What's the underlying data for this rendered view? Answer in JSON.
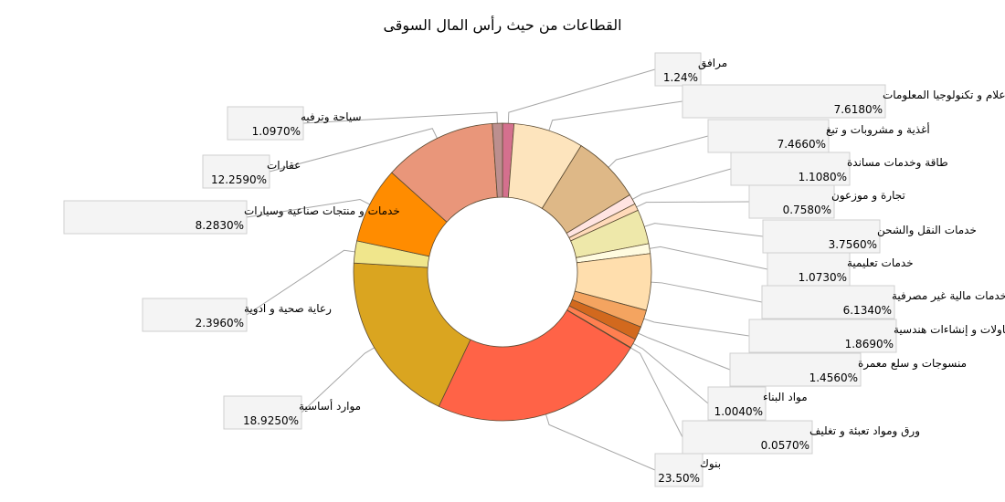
{
  "chart_data": {
    "type": "pie",
    "donut": true,
    "title": "القطاعات من حيث رأس المال السوقى",
    "slices": [
      {
        "name": "مرافق",
        "value_label": "1.24%",
        "value": 1.24,
        "color": "#d4708e"
      },
      {
        "name": "اتصالات و  اعلام و تكنولوجيا المعلومات",
        "value_label": "7.6180%",
        "value": 7.618,
        "color": "#fde4bd"
      },
      {
        "name": "أغذية و مشروبات و تبغ",
        "value_label": "7.4660%",
        "value": 7.466,
        "color": "#deb887"
      },
      {
        "name": "طاقة وخدمات مساندة",
        "value_label": "1.1080%",
        "value": 1.108,
        "color": "#ffe4e1"
      },
      {
        "name": "تجارة و موزعون",
        "value_label": "0.7580%",
        "value": 0.758,
        "color": "#ffdab9"
      },
      {
        "name": "خدمات النقل والشحن",
        "value_label": "3.7560%",
        "value": 3.756,
        "color": "#eee8aa"
      },
      {
        "name": "خدمات تعليمية",
        "value_label": "1.0730%",
        "value": 1.073,
        "color": "#fffbe0"
      },
      {
        "name": "خدمات مالية غير مصرفية",
        "value_label": "6.1340%",
        "value": 6.134,
        "color": "#ffdead"
      },
      {
        "name": "مقاولات و إنشاءات هندسية",
        "value_label": "1.8690%",
        "value": 1.869,
        "color": "#f4a460"
      },
      {
        "name": "منسوجات و سلع معمرة",
        "value_label": "1.4560%",
        "value": 1.456,
        "color": "#d2691e"
      },
      {
        "name": "مواد البناء",
        "value_label": "1.0040%",
        "value": 1.004,
        "color": "#ff7f50"
      },
      {
        "name": "ورق ومواد تعبئة و تغليف",
        "value_label": "0.0570%",
        "value": 0.057,
        "color": "#e9967a"
      },
      {
        "name": "بنوك",
        "value_label": "23.50%",
        "value": 23.5,
        "color": "#ff6347"
      },
      {
        "name": "موارد أساسية",
        "value_label": "18.9250%",
        "value": 18.925,
        "color": "#daa520"
      },
      {
        "name": "رعاية صحية و ادوية",
        "value_label": "2.3960%",
        "value": 2.396,
        "color": "#f0e68c"
      },
      {
        "name": "خدمات و منتجات صناعية وسيارات",
        "value_label": "8.2830%",
        "value": 8.283,
        "color": "#ff8c00"
      },
      {
        "name": "عقارات",
        "value_label": "12.2590%",
        "value": 12.259,
        "color": "#e9967a"
      },
      {
        "name": "سياحة وترفيه",
        "value_label": "1.0970%",
        "value": 1.097,
        "color": "#bc8f8f"
      }
    ]
  }
}
